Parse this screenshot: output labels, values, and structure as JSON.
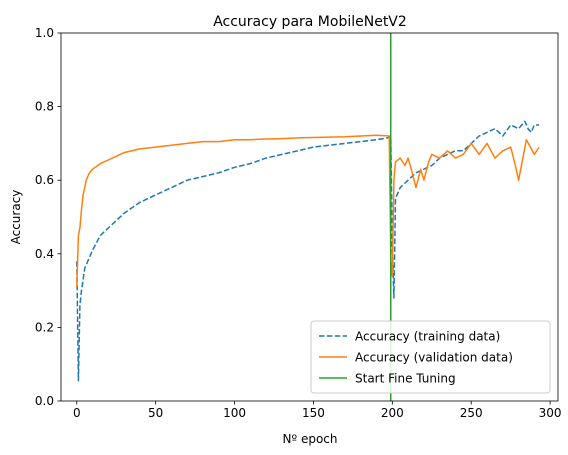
{
  "chart_data": {
    "type": "line",
    "title": "Accuracy para MobileNetV2",
    "xlabel": "Nº epoch",
    "ylabel": "Accuracy",
    "xlim": [
      -10,
      305
    ],
    "ylim": [
      0.0,
      1.0
    ],
    "xticks": [
      0,
      50,
      100,
      150,
      200,
      250,
      300
    ],
    "yticks": [
      0.0,
      0.2,
      0.4,
      0.6,
      0.8,
      1.0
    ],
    "grid": false,
    "legend_position": "lower-right",
    "series": [
      {
        "name": "Accuracy (training data)",
        "style": "dashed",
        "color": "#1f77b4",
        "x": [
          0,
          1,
          2,
          3,
          4,
          5,
          7,
          10,
          15,
          20,
          25,
          30,
          40,
          50,
          60,
          70,
          80,
          90,
          100,
          110,
          120,
          130,
          140,
          150,
          160,
          170,
          180,
          190,
          197,
          199,
          200,
          201,
          202,
          205,
          210,
          215,
          220,
          225,
          230,
          235,
          240,
          245,
          250,
          255,
          260,
          265,
          270,
          275,
          280,
          284,
          286,
          288,
          290,
          293
        ],
        "y": [
          0.38,
          0.055,
          0.26,
          0.3,
          0.33,
          0.36,
          0.38,
          0.41,
          0.45,
          0.47,
          0.49,
          0.51,
          0.54,
          0.56,
          0.58,
          0.6,
          0.61,
          0.62,
          0.635,
          0.645,
          0.66,
          0.67,
          0.68,
          0.69,
          0.695,
          0.7,
          0.705,
          0.71,
          0.715,
          0.72,
          0.42,
          0.28,
          0.55,
          0.58,
          0.6,
          0.62,
          0.63,
          0.64,
          0.66,
          0.67,
          0.68,
          0.68,
          0.7,
          0.72,
          0.73,
          0.74,
          0.72,
          0.75,
          0.74,
          0.76,
          0.74,
          0.73,
          0.75,
          0.75
        ]
      },
      {
        "name": "Accuracy (validation data)",
        "style": "solid",
        "color": "#ff7f0e",
        "x": [
          0,
          1,
          2,
          3,
          4,
          5,
          6,
          8,
          10,
          15,
          20,
          25,
          30,
          40,
          50,
          60,
          70,
          80,
          90,
          100,
          110,
          120,
          130,
          140,
          150,
          160,
          170,
          180,
          190,
          198,
          199,
          200,
          201,
          202,
          205,
          208,
          210,
          212,
          215,
          218,
          220,
          223,
          225,
          230,
          235,
          240,
          245,
          250,
          255,
          260,
          265,
          270,
          275,
          278,
          280,
          285,
          290,
          293
        ],
        "y": [
          0.31,
          0.45,
          0.47,
          0.52,
          0.56,
          0.58,
          0.6,
          0.62,
          0.63,
          0.645,
          0.655,
          0.665,
          0.675,
          0.685,
          0.69,
          0.695,
          0.7,
          0.705,
          0.705,
          0.71,
          0.71,
          0.712,
          0.713,
          0.715,
          0.716,
          0.717,
          0.718,
          0.72,
          0.722,
          0.72,
          0.38,
          0.34,
          0.6,
          0.65,
          0.66,
          0.64,
          0.66,
          0.63,
          0.58,
          0.63,
          0.6,
          0.65,
          0.67,
          0.66,
          0.68,
          0.66,
          0.67,
          0.7,
          0.67,
          0.7,
          0.66,
          0.68,
          0.69,
          0.64,
          0.6,
          0.71,
          0.67,
          0.69
        ]
      }
    ],
    "vlines": [
      {
        "name": "Start Fine Tuning",
        "x": 199,
        "color": "#2ca02c"
      }
    ]
  }
}
